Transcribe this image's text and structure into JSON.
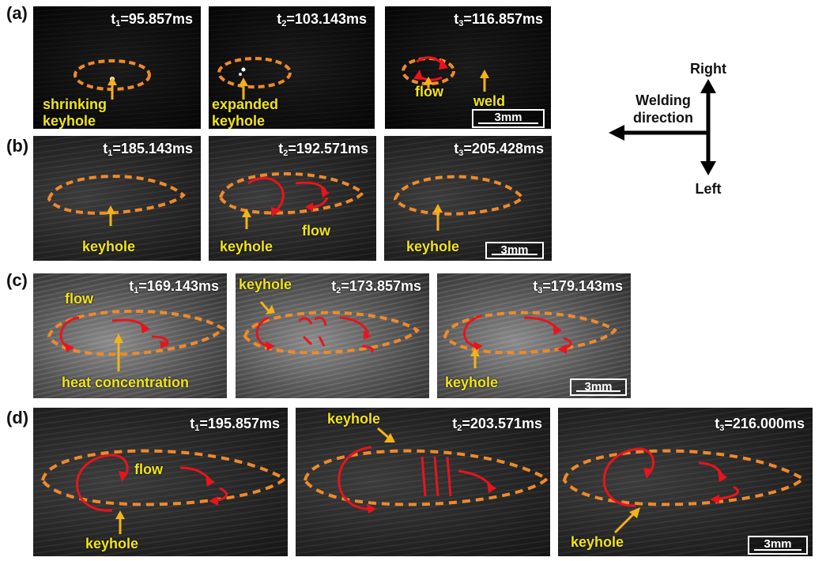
{
  "rows": {
    "a": {
      "label": "(a)",
      "times": [
        "t1=95.857ms",
        "t2=103.143ms",
        "t3=116.857ms"
      ],
      "annotations": {
        "p1": "shrinking\nkeyhole",
        "p2": "expanded\nkeyhole",
        "p3_flow": "flow",
        "p3_weld": "weld"
      },
      "scale_bar": "3mm"
    },
    "b": {
      "label": "(b)",
      "times": [
        "t1=185.143ms",
        "t2=192.571ms",
        "t3=205.428ms"
      ],
      "annotations": {
        "p1": "keyhole",
        "p2_keyhole": "keyhole",
        "p2_flow": "flow",
        "p3": "keyhole"
      },
      "scale_bar": "3mm"
    },
    "c": {
      "label": "(c)",
      "times": [
        "t1=169.143ms",
        "t2=173.857ms",
        "t3=179.143ms"
      ],
      "annotations": {
        "p1_flow": "flow",
        "p1_heat": "heat concentration",
        "p2": "keyhole",
        "p3": "keyhole"
      },
      "scale_bar": "3mm"
    },
    "d": {
      "label": "(d)",
      "times": [
        "t1=195.857ms",
        "t2=203.571ms",
        "t3=216.000ms"
      ],
      "annotations": {
        "p1_flow": "flow",
        "p1_keyhole": "keyhole",
        "p2": "keyhole",
        "p3": "keyhole"
      },
      "scale_bar": "3mm"
    }
  },
  "direction_diagram": {
    "up_label": "Right",
    "down_label": "Left",
    "arrow_label": "Welding\ndirection"
  },
  "colors": {
    "melt_pool_outline": "#ee8a2c",
    "flow_arrow": "#e8141c",
    "annotation_text": "#f1e41a",
    "annotation_arrow": "#f2b21b"
  }
}
